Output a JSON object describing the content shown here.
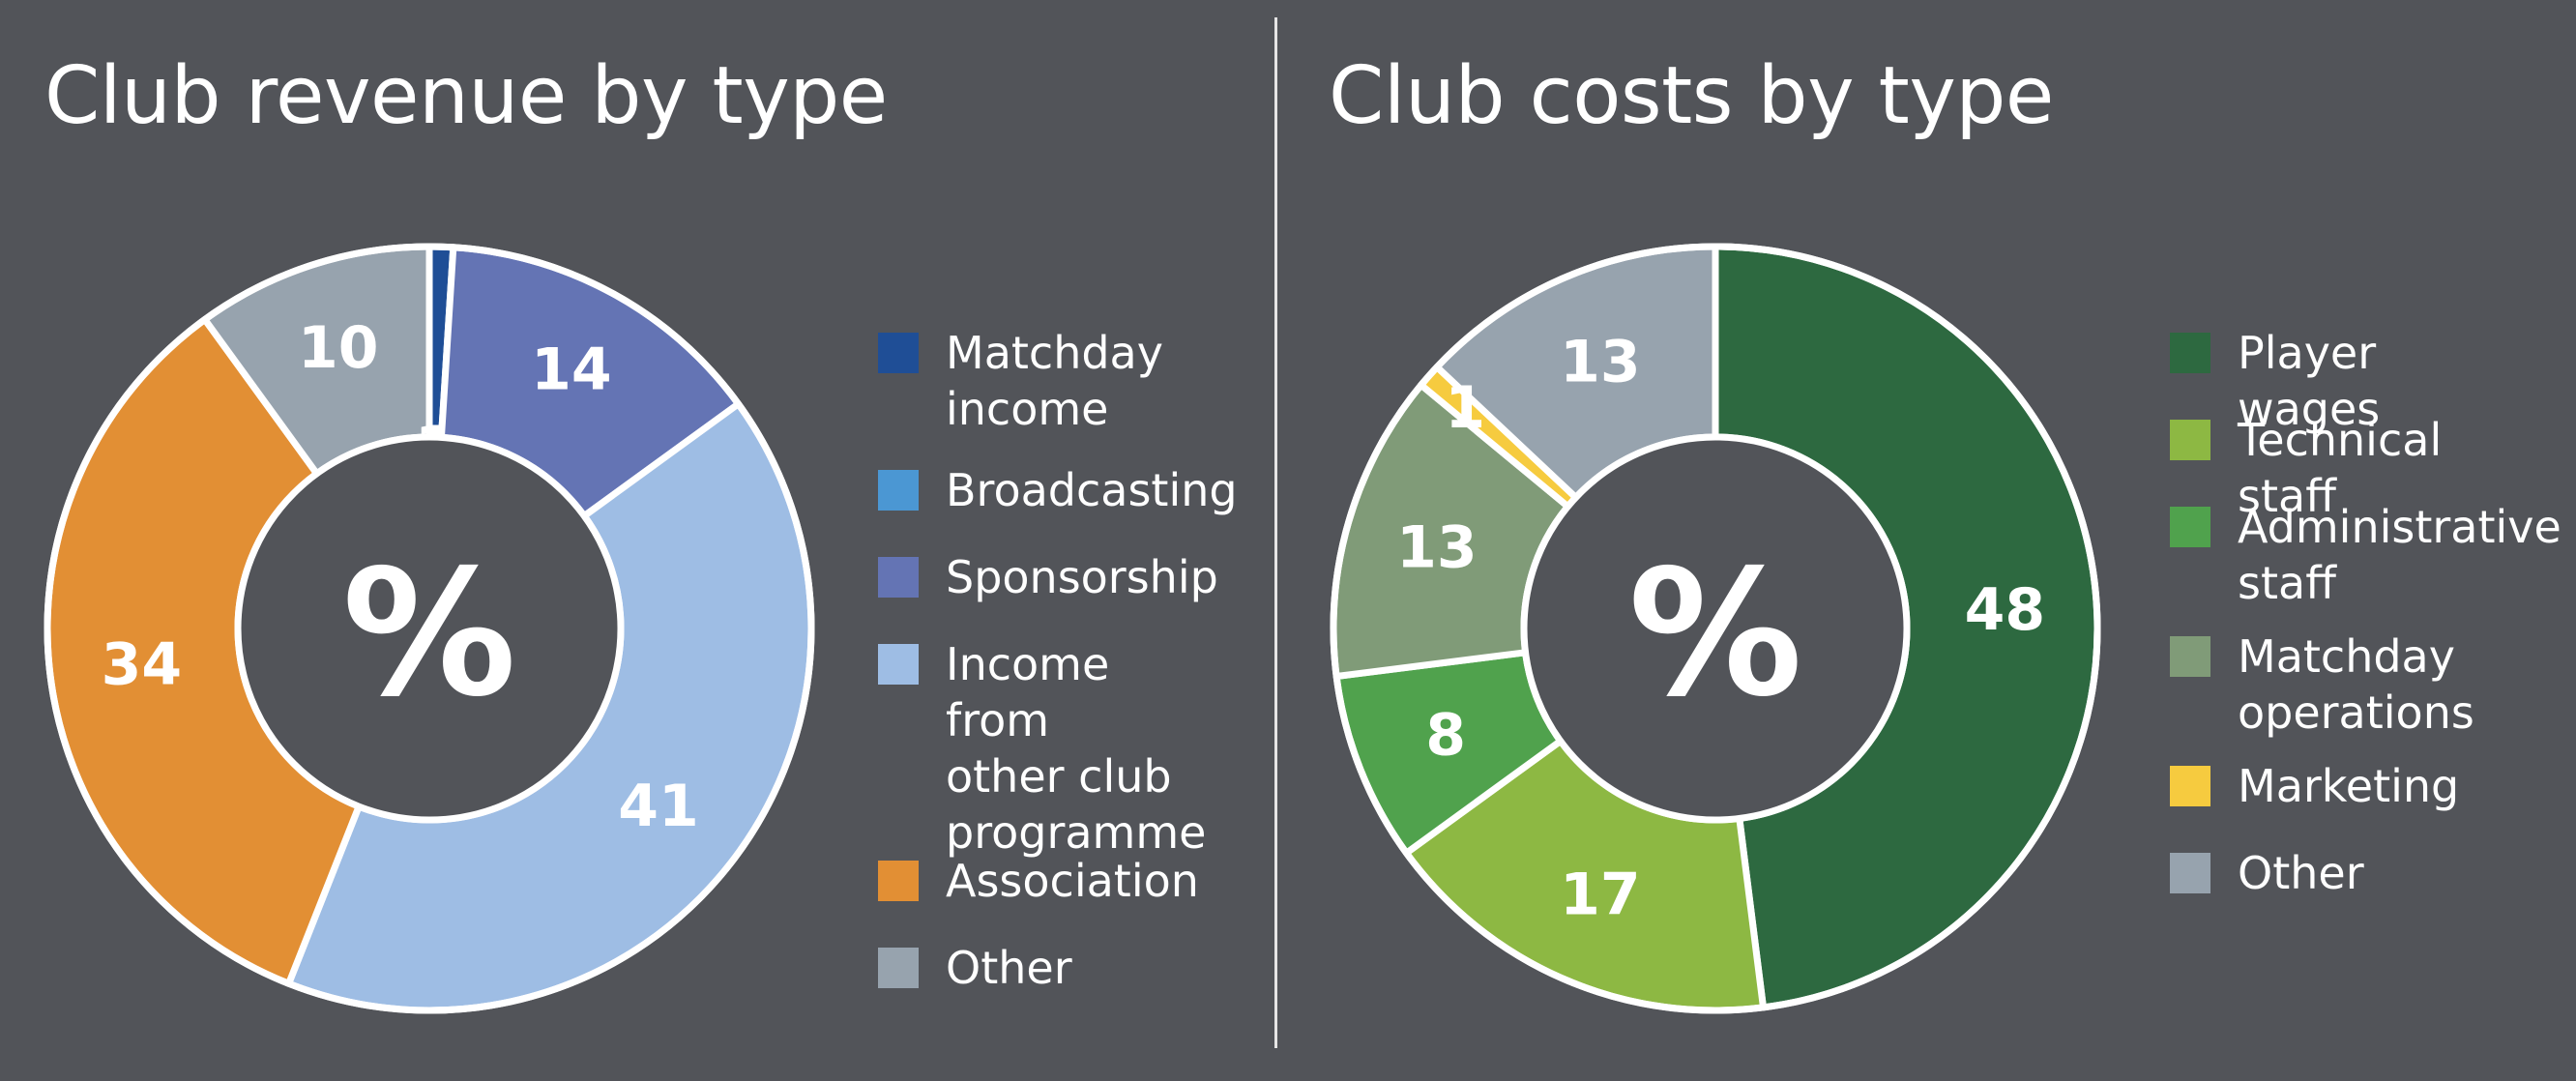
{
  "chart_data": [
    {
      "type": "pie",
      "title": "Club revenue by type",
      "center_label": "%",
      "legend_position": "right",
      "categories": [
        "Matchday\nincome",
        "Broadcasting",
        "Sponsorship",
        "Income from\nother club\nprogramme",
        "Association",
        "Other"
      ],
      "values": [
        1,
        0,
        14,
        41,
        34,
        10
      ],
      "colors": [
        "#1f4e96",
        "#4b97d3",
        "#6474b4",
        "#9ebde4",
        "#e28f34",
        "#97a3ae"
      ],
      "data_labels": [
        "1",
        "",
        "14",
        "41",
        "34",
        "10"
      ]
    },
    {
      "type": "pie",
      "title": "Club costs by type",
      "center_label": "%",
      "legend_position": "right",
      "categories": [
        "Player wages",
        "Technical staff",
        "Administrative\nstaff",
        "Matchday\noperations",
        "Marketing",
        "Other"
      ],
      "values": [
        48,
        17,
        8,
        13,
        1,
        13
      ],
      "colors": [
        "#2d6940",
        "#8db843",
        "#50a24d",
        "#809b78",
        "#f6cb3f",
        "#97a3ae"
      ],
      "data_labels": [
        "48",
        "17",
        "8",
        "13",
        "1",
        "13"
      ]
    }
  ]
}
